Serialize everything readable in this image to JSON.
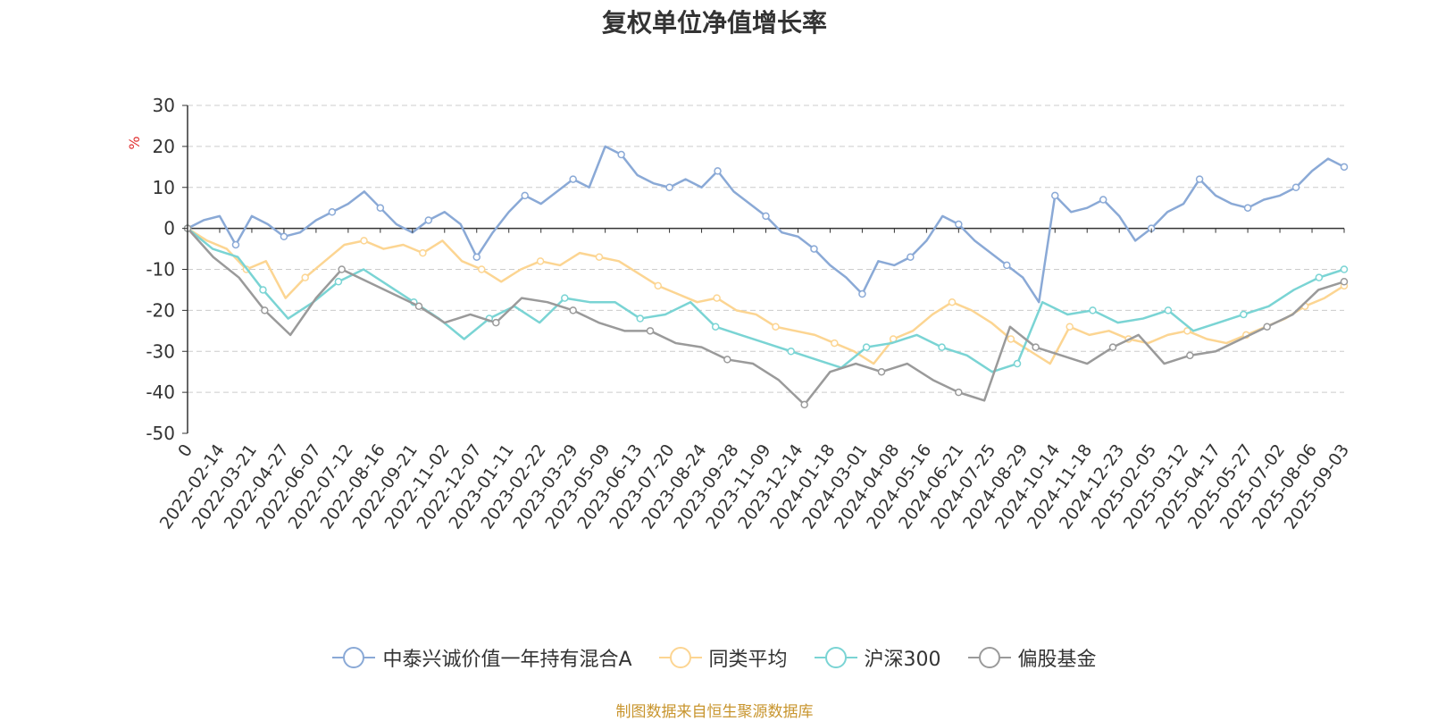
{
  "chart_data": {
    "type": "line",
    "title": "复权单位净值增长率",
    "ylabel": "%",
    "ylim": [
      -50,
      30
    ],
    "yticks": [
      30,
      20,
      10,
      0,
      -10,
      -20,
      -30,
      -40,
      -50
    ],
    "grid": true,
    "legend_position": "bottom",
    "x_tick_labels": [
      "0",
      "2022-02-14",
      "2022-03-21",
      "2022-04-27",
      "2022-06-07",
      "2022-07-12",
      "2022-08-16",
      "2022-09-21",
      "2022-11-02",
      "2022-12-07",
      "2023-01-11",
      "2023-02-22",
      "2023-03-29",
      "2023-05-09",
      "2023-06-13",
      "2023-07-20",
      "2023-08-24",
      "2023-09-28",
      "2023-11-09",
      "2023-12-14",
      "2024-01-18",
      "2024-03-01",
      "2024-04-08",
      "2024-05-16",
      "2024-06-21",
      "2024-07-25",
      "2024-08-29",
      "2024-10-14",
      "2024-11-18",
      "2024-12-23",
      "2025-02-05",
      "2025-03-12",
      "2025-04-17",
      "2025-05-27",
      "2025-07-02",
      "2025-08-06",
      "2025-09-03"
    ],
    "series": [
      {
        "name": "中泰兴诚价值一年持有混合A",
        "color": "#8aa9d6",
        "values": [
          0,
          2,
          3,
          -4,
          3,
          1,
          -2,
          -1,
          2,
          4,
          6,
          9,
          5,
          1,
          -1,
          2,
          4,
          1,
          -7,
          -1,
          4,
          8,
          6,
          9,
          12,
          10,
          20,
          18,
          13,
          11,
          10,
          12,
          10,
          14,
          9,
          6,
          3,
          -1,
          -2,
          -5,
          -9,
          -12,
          -16,
          -8,
          -9,
          -7,
          -3,
          3,
          1,
          -3,
          -6,
          -9,
          -12,
          -18,
          8,
          4,
          5,
          7,
          3,
          -3,
          0,
          4,
          6,
          12,
          8,
          6,
          5,
          7,
          8,
          10,
          14,
          17,
          15
        ]
      },
      {
        "name": "同类平均",
        "color": "#fcd592",
        "values": [
          0,
          -3,
          -5,
          -10,
          -8,
          -17,
          -12,
          -8,
          -4,
          -3,
          -5,
          -4,
          -6,
          -3,
          -8,
          -10,
          -13,
          -10,
          -8,
          -9,
          -6,
          -7,
          -8,
          -11,
          -14,
          -16,
          -18,
          -17,
          -20,
          -21,
          -24,
          -25,
          -26,
          -28,
          -30,
          -33,
          -27,
          -25,
          -21,
          -18,
          -20,
          -23,
          -27,
          -30,
          -33,
          -24,
          -26,
          -25,
          -27,
          -28,
          -26,
          -25,
          -27,
          -28,
          -26,
          -24,
          -22,
          -19,
          -17,
          -14
        ]
      },
      {
        "name": "沪深300",
        "color": "#7ad4d4",
        "values": [
          0,
          -5,
          -7,
          -15,
          -22,
          -18,
          -13,
          -10,
          -14,
          -18,
          -22,
          -27,
          -22,
          -19,
          -23,
          -17,
          -18,
          -18,
          -22,
          -21,
          -18,
          -24,
          -26,
          -28,
          -30,
          -32,
          -34,
          -29,
          -28,
          -26,
          -29,
          -31,
          -35,
          -33,
          -18,
          -21,
          -20,
          -23,
          -22,
          -20,
          -25,
          -23,
          -21,
          -19,
          -15,
          -12,
          -10
        ]
      },
      {
        "name": "偏股基金",
        "color": "#9a9a9a",
        "values": [
          0,
          -7,
          -12,
          -20,
          -26,
          -17,
          -10,
          -13,
          -16,
          -19,
          -23,
          -21,
          -23,
          -17,
          -18,
          -20,
          -23,
          -25,
          -25,
          -28,
          -29,
          -32,
          -33,
          -37,
          -43,
          -35,
          -33,
          -35,
          -33,
          -37,
          -40,
          -42,
          -24,
          -29,
          -31,
          -33,
          -29,
          -26,
          -33,
          -31,
          -30,
          -27,
          -24,
          -21,
          -15,
          -13
        ]
      }
    ]
  },
  "legend_items": [
    {
      "label": "中泰兴诚价值一年持有混合A",
      "color": "#8aa9d6"
    },
    {
      "label": "同类平均",
      "color": "#fcd592"
    },
    {
      "label": "沪深300",
      "color": "#7ad4d4"
    },
    {
      "label": "偏股基金",
      "color": "#9a9a9a"
    }
  ],
  "source_note": "制图数据来自恒生聚源数据库",
  "colors": {
    "axis": "#333333",
    "grid": "#cccccc",
    "ylabel": "#e03030",
    "source": "#c8952e"
  }
}
